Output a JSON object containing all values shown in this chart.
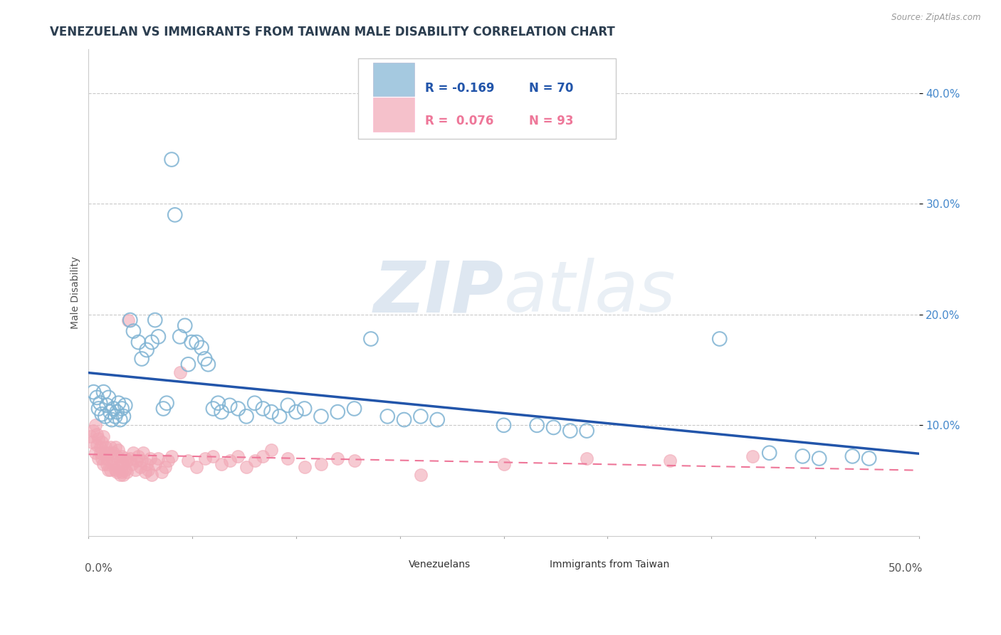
{
  "title": "VENEZUELAN VS IMMIGRANTS FROM TAIWAN MALE DISABILITY CORRELATION CHART",
  "source": "Source: ZipAtlas.com",
  "ylabel": "Male Disability",
  "xlim": [
    0.0,
    0.5
  ],
  "ylim": [
    0.0,
    0.44
  ],
  "yticks": [
    0.1,
    0.2,
    0.3,
    0.4
  ],
  "ytick_labels": [
    "10.0%",
    "20.0%",
    "30.0%",
    "40.0%"
  ],
  "legend_blue_r": "R = -0.169",
  "legend_blue_n": "N = 70",
  "legend_pink_r": "R =  0.076",
  "legend_pink_n": "N = 93",
  "legend_label_blue": "Venezuelans",
  "legend_label_pink": "Immigrants from Taiwan",
  "blue_color": "#7FB3D3",
  "pink_color": "#F1A7B5",
  "blue_line_color": "#2255AA",
  "pink_line_color": "#EE7799",
  "watermark_color": "#D8E8F0",
  "blue_scatter": [
    [
      0.003,
      0.13
    ],
    [
      0.005,
      0.125
    ],
    [
      0.006,
      0.115
    ],
    [
      0.007,
      0.12
    ],
    [
      0.008,
      0.11
    ],
    [
      0.009,
      0.13
    ],
    [
      0.01,
      0.108
    ],
    [
      0.011,
      0.118
    ],
    [
      0.012,
      0.125
    ],
    [
      0.013,
      0.112
    ],
    [
      0.014,
      0.105
    ],
    [
      0.015,
      0.115
    ],
    [
      0.016,
      0.108
    ],
    [
      0.017,
      0.112
    ],
    [
      0.018,
      0.12
    ],
    [
      0.019,
      0.105
    ],
    [
      0.02,
      0.115
    ],
    [
      0.021,
      0.108
    ],
    [
      0.022,
      0.118
    ],
    [
      0.025,
      0.195
    ],
    [
      0.027,
      0.185
    ],
    [
      0.03,
      0.175
    ],
    [
      0.032,
      0.16
    ],
    [
      0.035,
      0.168
    ],
    [
      0.038,
      0.175
    ],
    [
      0.04,
      0.195
    ],
    [
      0.042,
      0.18
    ],
    [
      0.045,
      0.115
    ],
    [
      0.047,
      0.12
    ],
    [
      0.05,
      0.34
    ],
    [
      0.052,
      0.29
    ],
    [
      0.055,
      0.18
    ],
    [
      0.058,
      0.19
    ],
    [
      0.06,
      0.155
    ],
    [
      0.062,
      0.175
    ],
    [
      0.065,
      0.175
    ],
    [
      0.068,
      0.17
    ],
    [
      0.07,
      0.16
    ],
    [
      0.072,
      0.155
    ],
    [
      0.075,
      0.115
    ],
    [
      0.078,
      0.12
    ],
    [
      0.08,
      0.112
    ],
    [
      0.085,
      0.118
    ],
    [
      0.09,
      0.115
    ],
    [
      0.095,
      0.108
    ],
    [
      0.1,
      0.12
    ],
    [
      0.105,
      0.115
    ],
    [
      0.11,
      0.112
    ],
    [
      0.115,
      0.108
    ],
    [
      0.12,
      0.118
    ],
    [
      0.125,
      0.112
    ],
    [
      0.13,
      0.115
    ],
    [
      0.14,
      0.108
    ],
    [
      0.15,
      0.112
    ],
    [
      0.16,
      0.115
    ],
    [
      0.17,
      0.178
    ],
    [
      0.18,
      0.108
    ],
    [
      0.19,
      0.105
    ],
    [
      0.2,
      0.108
    ],
    [
      0.21,
      0.105
    ],
    [
      0.25,
      0.1
    ],
    [
      0.27,
      0.1
    ],
    [
      0.28,
      0.098
    ],
    [
      0.29,
      0.095
    ],
    [
      0.3,
      0.095
    ],
    [
      0.38,
      0.178
    ],
    [
      0.41,
      0.075
    ],
    [
      0.43,
      0.072
    ],
    [
      0.44,
      0.07
    ],
    [
      0.46,
      0.072
    ],
    [
      0.47,
      0.07
    ]
  ],
  "pink_scatter": [
    [
      0.001,
      0.09
    ],
    [
      0.002,
      0.085
    ],
    [
      0.003,
      0.095
    ],
    [
      0.004,
      0.1
    ],
    [
      0.004,
      0.075
    ],
    [
      0.005,
      0.082
    ],
    [
      0.005,
      0.092
    ],
    [
      0.006,
      0.088
    ],
    [
      0.006,
      0.07
    ],
    [
      0.007,
      0.08
    ],
    [
      0.007,
      0.075
    ],
    [
      0.008,
      0.085
    ],
    [
      0.008,
      0.07
    ],
    [
      0.009,
      0.09
    ],
    [
      0.009,
      0.065
    ],
    [
      0.01,
      0.075
    ],
    [
      0.01,
      0.08
    ],
    [
      0.011,
      0.065
    ],
    [
      0.011,
      0.07
    ],
    [
      0.012,
      0.06
    ],
    [
      0.012,
      0.075
    ],
    [
      0.013,
      0.08
    ],
    [
      0.013,
      0.06
    ],
    [
      0.014,
      0.07
    ],
    [
      0.015,
      0.075
    ],
    [
      0.015,
      0.065
    ],
    [
      0.016,
      0.08
    ],
    [
      0.016,
      0.06
    ],
    [
      0.017,
      0.072
    ],
    [
      0.017,
      0.058
    ],
    [
      0.018,
      0.078
    ],
    [
      0.018,
      0.062
    ],
    [
      0.019,
      0.068
    ],
    [
      0.019,
      0.055
    ],
    [
      0.02,
      0.072
    ],
    [
      0.02,
      0.058
    ],
    [
      0.021,
      0.065
    ],
    [
      0.021,
      0.055
    ],
    [
      0.022,
      0.07
    ],
    [
      0.022,
      0.06
    ],
    [
      0.023,
      0.068
    ],
    [
      0.023,
      0.058
    ],
    [
      0.024,
      0.195
    ],
    [
      0.025,
      0.07
    ],
    [
      0.026,
      0.065
    ],
    [
      0.027,
      0.075
    ],
    [
      0.028,
      0.06
    ],
    [
      0.029,
      0.068
    ],
    [
      0.03,
      0.072
    ],
    [
      0.031,
      0.062
    ],
    [
      0.032,
      0.068
    ],
    [
      0.033,
      0.075
    ],
    [
      0.034,
      0.058
    ],
    [
      0.035,
      0.065
    ],
    [
      0.036,
      0.06
    ],
    [
      0.037,
      0.07
    ],
    [
      0.038,
      0.055
    ],
    [
      0.04,
      0.065
    ],
    [
      0.042,
      0.07
    ],
    [
      0.044,
      0.058
    ],
    [
      0.046,
      0.062
    ],
    [
      0.048,
      0.068
    ],
    [
      0.05,
      0.072
    ],
    [
      0.055,
      0.148
    ],
    [
      0.06,
      0.068
    ],
    [
      0.065,
      0.062
    ],
    [
      0.07,
      0.07
    ],
    [
      0.075,
      0.072
    ],
    [
      0.08,
      0.065
    ],
    [
      0.085,
      0.068
    ],
    [
      0.09,
      0.072
    ],
    [
      0.095,
      0.062
    ],
    [
      0.1,
      0.068
    ],
    [
      0.105,
      0.072
    ],
    [
      0.11,
      0.078
    ],
    [
      0.12,
      0.07
    ],
    [
      0.13,
      0.062
    ],
    [
      0.14,
      0.065
    ],
    [
      0.15,
      0.07
    ],
    [
      0.16,
      0.068
    ],
    [
      0.2,
      0.055
    ],
    [
      0.25,
      0.065
    ],
    [
      0.3,
      0.07
    ],
    [
      0.35,
      0.068
    ],
    [
      0.4,
      0.072
    ]
  ],
  "title_fontsize": 12,
  "axis_label_fontsize": 10,
  "tick_fontsize": 11
}
